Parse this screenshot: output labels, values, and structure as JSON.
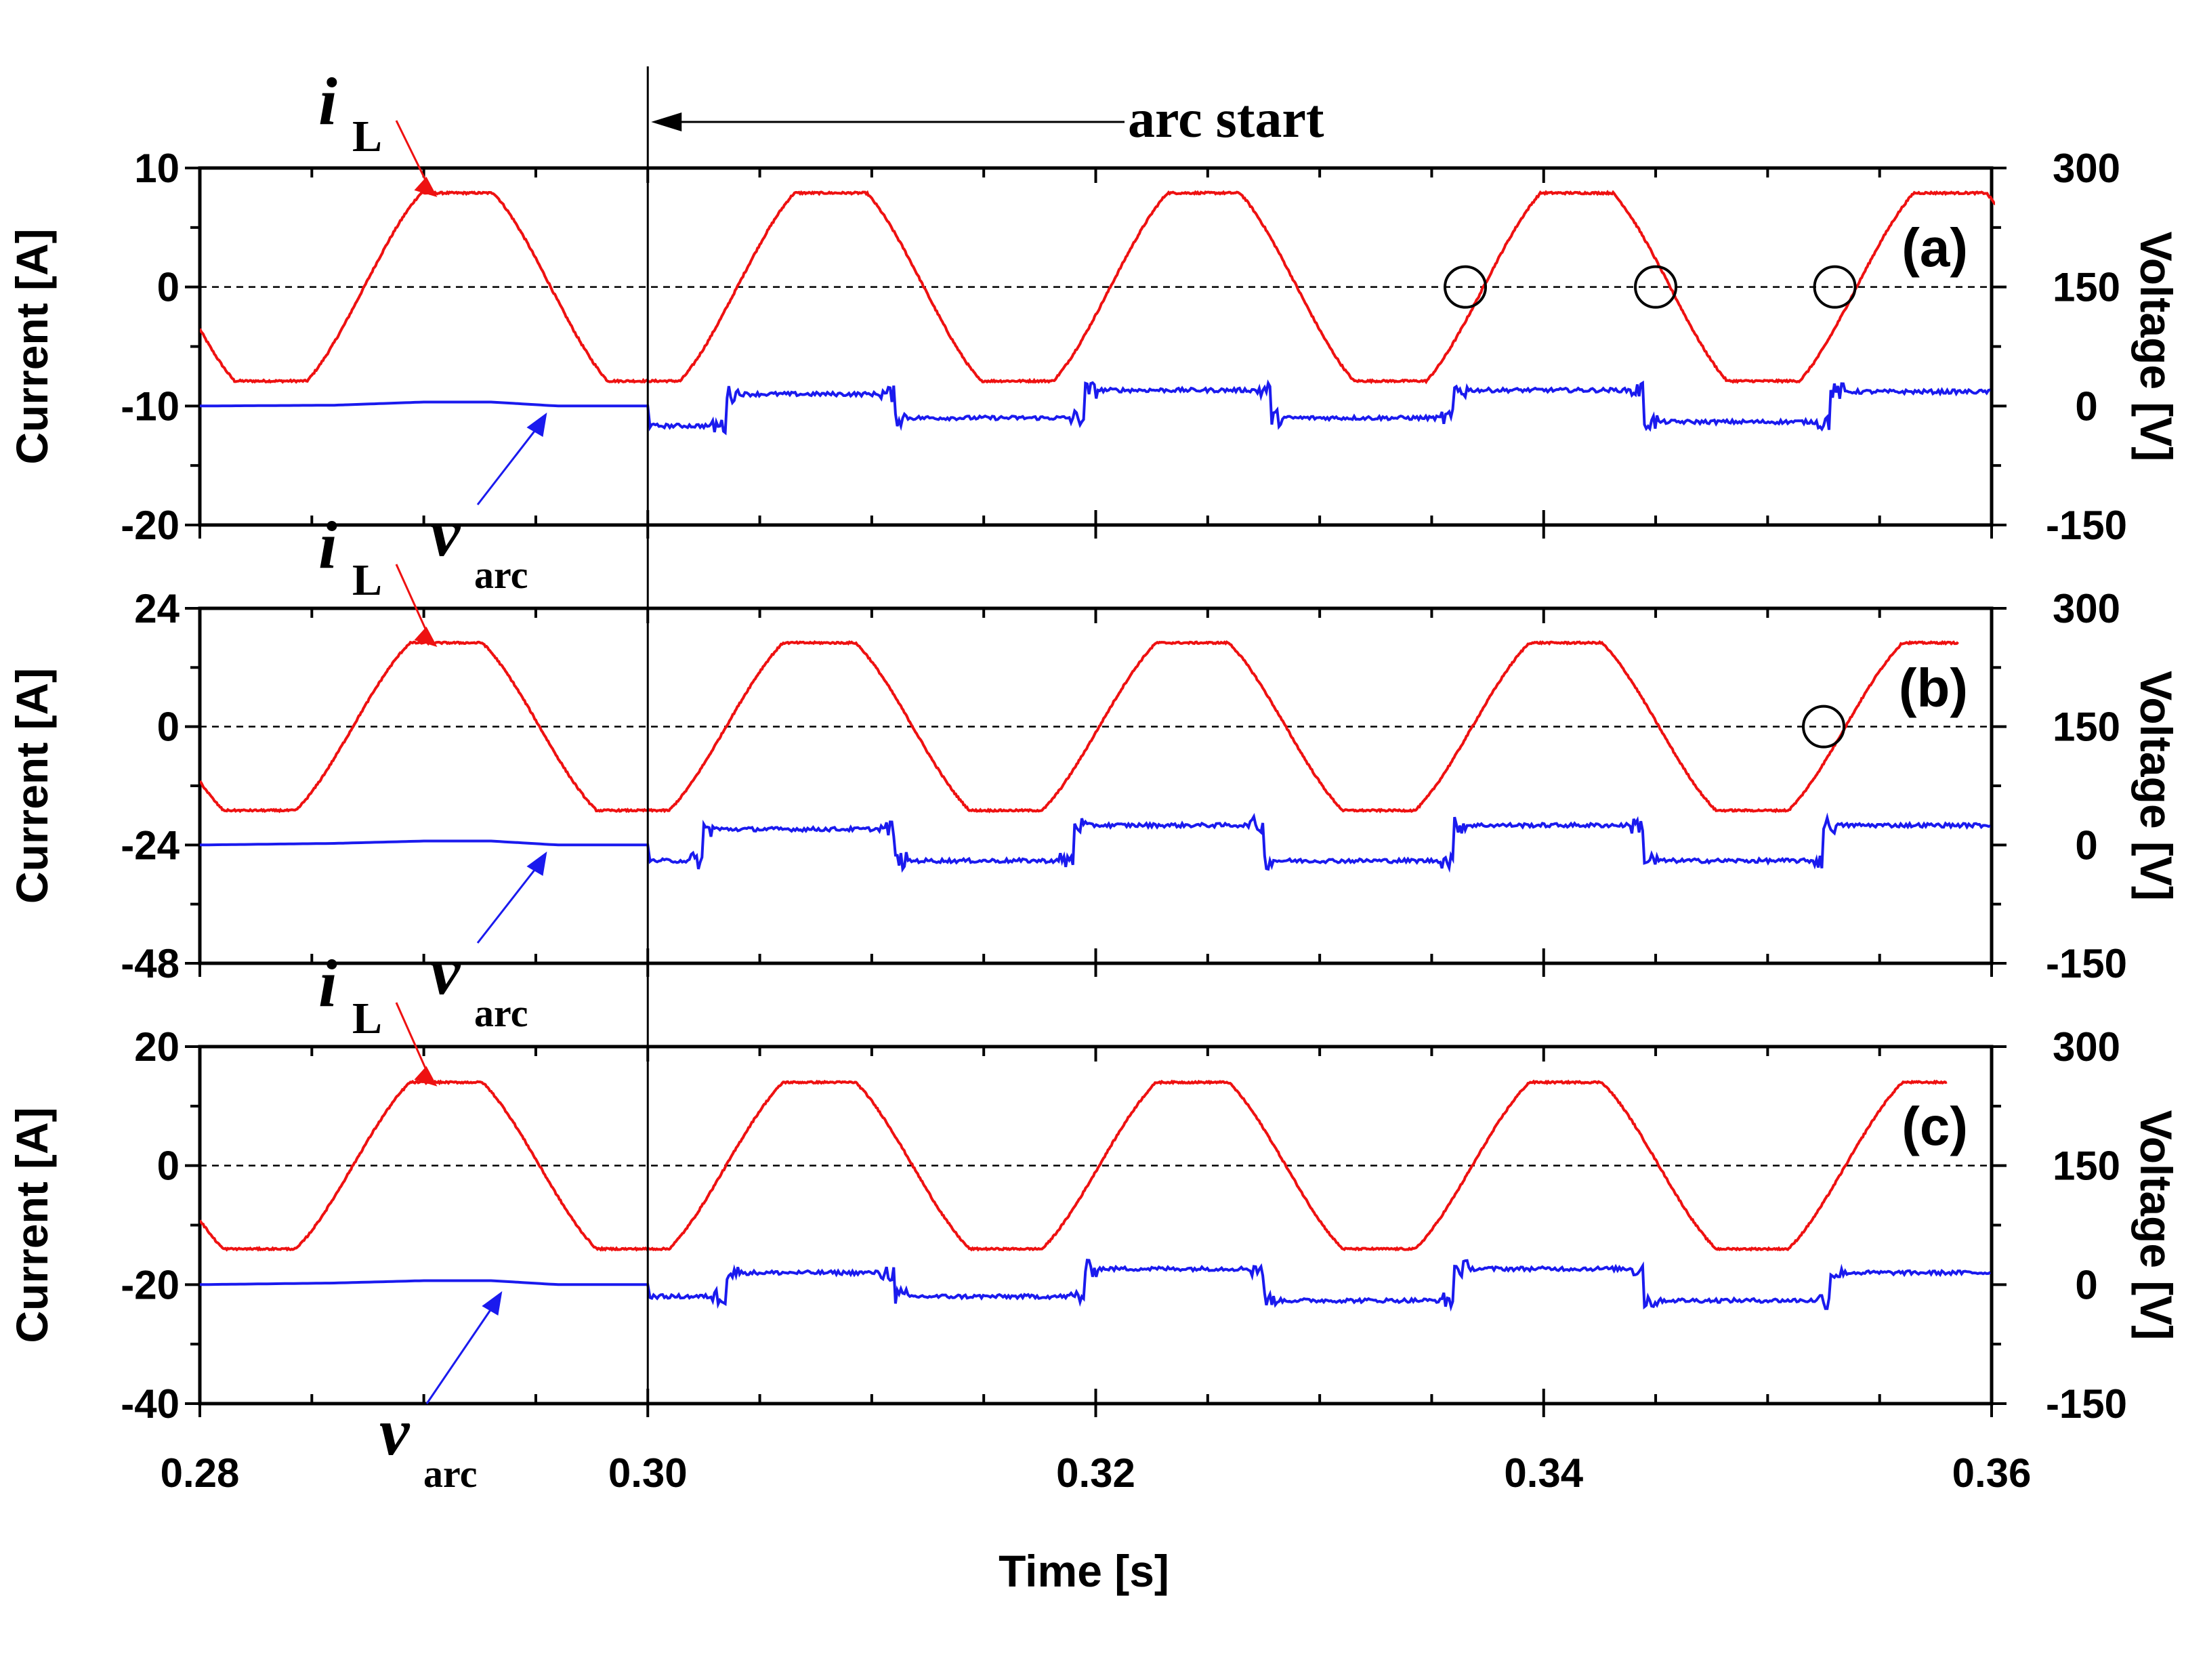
{
  "chart_data": {
    "type": "line",
    "xlabel": "Time [s]",
    "x_ticks": [
      "0.28",
      "0.30",
      "0.32",
      "0.34",
      "0.36"
    ],
    "xlim": [
      0.28,
      0.36
    ],
    "annotation": {
      "text": "arc start",
      "x": 0.3
    },
    "colors": {
      "current": "#ee1111",
      "voltage": "#1a1aee",
      "zero_line": "#000000"
    },
    "panels": [
      {
        "label": "(a)",
        "ylabel_left": "Current [A]",
        "ylabel_right": "Voltage [V]",
        "ylim_left": [
          -20,
          10
        ],
        "ylim_right": [
          -150,
          300
        ],
        "left_ticks": [
          "10",
          "0",
          "-10",
          "-20"
        ],
        "right_ticks": [
          "300",
          "150",
          "0",
          "-150"
        ],
        "series": [
          {
            "name": "i",
            "subscript": "L",
            "axis": "left",
            "amplitude": 7.9,
            "period": 0.01666,
            "phase_at_peak": 0.2915
          },
          {
            "name": "v",
            "subscript": "arc",
            "axis": "right",
            "pre_arc": [
              [
                0.28,
                0
              ],
              [
                0.286,
                1
              ],
              [
                0.29,
                5
              ],
              [
                0.293,
                5
              ],
              [
                0.296,
                0
              ],
              [
                0.3,
                0
              ]
            ],
            "post_arc_levels": [
              [
                0.3,
                -25
              ],
              [
                0.3035,
                15
              ],
              [
                0.311,
                -15
              ],
              [
                0.3195,
                20
              ],
              [
                0.3278,
                -15
              ],
              [
                0.336,
                20
              ],
              [
                0.3445,
                -20
              ],
              [
                0.3528,
                18
              ],
              [
                0.36,
                18
              ]
            ]
          }
        ],
        "circled_points": [
          0.3365,
          0.345,
          0.353
        ]
      },
      {
        "label": "(b)",
        "ylabel_left": "Current [A]",
        "ylabel_right": "Voltage [V]",
        "ylim_left": [
          -48,
          24
        ],
        "ylim_right": [
          -150,
          300
        ],
        "left_ticks": [
          "24",
          "0",
          "-24",
          "-48"
        ],
        "right_ticks": [
          "300",
          "150",
          "0",
          "-150"
        ],
        "series": [
          {
            "name": "i",
            "subscript": "L",
            "axis": "left",
            "amplitude": 17,
            "period": 0.01666,
            "phase_at_peak": 0.291
          },
          {
            "name": "v",
            "subscript": "arc",
            "axis": "right",
            "pre_arc": [
              [
                0.28,
                0
              ],
              [
                0.286,
                2
              ],
              [
                0.29,
                5
              ],
              [
                0.293,
                5
              ],
              [
                0.296,
                0
              ],
              [
                0.3,
                0
              ]
            ],
            "post_arc_levels": [
              [
                0.3,
                -20
              ],
              [
                0.3025,
                20
              ],
              [
                0.311,
                -20
              ],
              [
                0.319,
                25
              ],
              [
                0.3275,
                -20
              ],
              [
                0.336,
                25
              ],
              [
                0.3445,
                -20
              ],
              [
                0.3525,
                25
              ],
              [
                0.36,
                25
              ]
            ]
          }
        ],
        "circled_points": [
          0.3525
        ]
      },
      {
        "label": "(c)",
        "ylabel_left": "Current [A]",
        "ylabel_right": "Voltage [V]",
        "ylim_left": [
          -40,
          20
        ],
        "ylim_right": [
          -150,
          300
        ],
        "left_ticks": [
          "20",
          "0",
          "-20",
          "-40"
        ],
        "right_ticks": [
          "300",
          "150",
          "0",
          "-150"
        ],
        "series": [
          {
            "name": "i",
            "subscript": "L",
            "axis": "left",
            "amplitude": 14,
            "period": 0.01666,
            "phase_at_peak": 0.291
          },
          {
            "name": "v",
            "subscript": "arc",
            "axis": "right",
            "pre_arc": [
              [
                0.28,
                0
              ],
              [
                0.286,
                2
              ],
              [
                0.29,
                5
              ],
              [
                0.293,
                5
              ],
              [
                0.296,
                0
              ],
              [
                0.3,
                0
              ]
            ],
            "post_arc_levels": [
              [
                0.3,
                -15
              ],
              [
                0.3035,
                15
              ],
              [
                0.311,
                -15
              ],
              [
                0.3195,
                20
              ],
              [
                0.3275,
                -20
              ],
              [
                0.336,
                20
              ],
              [
                0.3445,
                -20
              ],
              [
                0.3528,
                15
              ],
              [
                0.36,
                15
              ]
            ]
          }
        ],
        "circled_points": []
      }
    ]
  }
}
